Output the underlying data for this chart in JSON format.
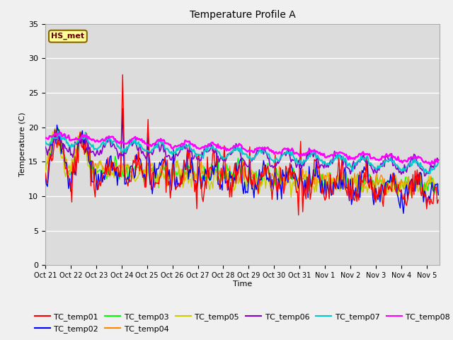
{
  "title": "Temperature Profile A",
  "xlabel": "Time",
  "ylabel": "Temperature (C)",
  "ylim": [
    0,
    35
  ],
  "x_tick_labels": [
    "Oct 21",
    "Oct 22",
    "Oct 23",
    "Oct 24",
    "Oct 25",
    "Oct 26",
    "Oct 27",
    "Oct 28",
    "Oct 29",
    "Oct 30",
    "Oct 31",
    "Nov 1",
    "Nov 2",
    "Nov 3",
    "Nov 4",
    "Nov 5"
  ],
  "series_colors": {
    "TC_temp01": "#ff0000",
    "TC_temp02": "#0000ff",
    "TC_temp03": "#00ff00",
    "TC_temp04": "#ff8800",
    "TC_temp05": "#cccc00",
    "TC_temp06": "#8800cc",
    "TC_temp07": "#00cccc",
    "TC_temp08": "#ff00ff"
  },
  "annotation_text": "HS_met",
  "bg_color": "#dcdcdc",
  "grid_color": "#ffffff",
  "fig_bg": "#f0f0f0"
}
